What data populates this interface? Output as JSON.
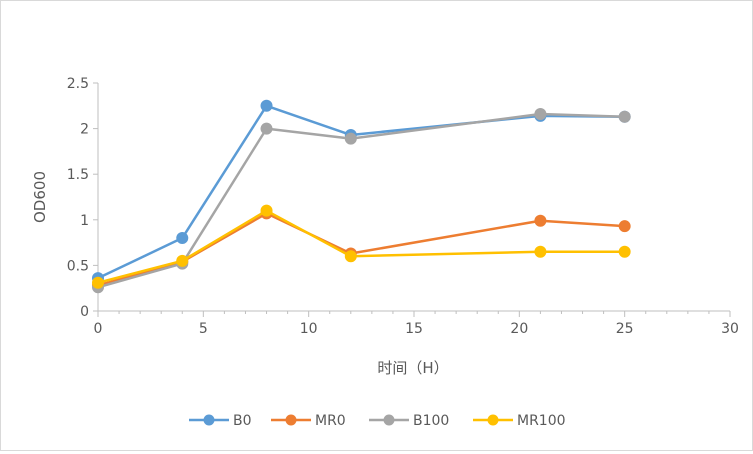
{
  "chart_data": {
    "type": "line",
    "title": "",
    "xlabel": "时间（H）",
    "ylabel": "OD600",
    "xlim": [
      0,
      30
    ],
    "ylim": [
      0,
      2.5
    ],
    "x_ticks": [
      "0",
      "5",
      "10",
      "15",
      "20",
      "25",
      "30"
    ],
    "y_ticks": [
      "0",
      "0.5",
      "1",
      "1.5",
      "2",
      "2.5"
    ],
    "x": [
      0,
      4,
      8,
      12,
      21,
      25
    ],
    "grid": false,
    "legend_position": "bottom",
    "series": [
      {
        "name": "B0",
        "color": "#5b9bd5",
        "values": [
          0.36,
          0.8,
          2.25,
          1.93,
          2.14,
          2.13
        ]
      },
      {
        "name": "MR0",
        "color": "#ed7d31",
        "values": [
          0.28,
          0.54,
          1.07,
          0.63,
          0.99,
          0.93
        ]
      },
      {
        "name": "B100",
        "color": "#a5a5a5",
        "values": [
          0.26,
          0.52,
          2.0,
          1.89,
          2.16,
          2.13
        ]
      },
      {
        "name": "MR100",
        "color": "#ffc000",
        "values": [
          0.31,
          0.55,
          1.1,
          0.6,
          0.65,
          0.65
        ]
      }
    ]
  }
}
